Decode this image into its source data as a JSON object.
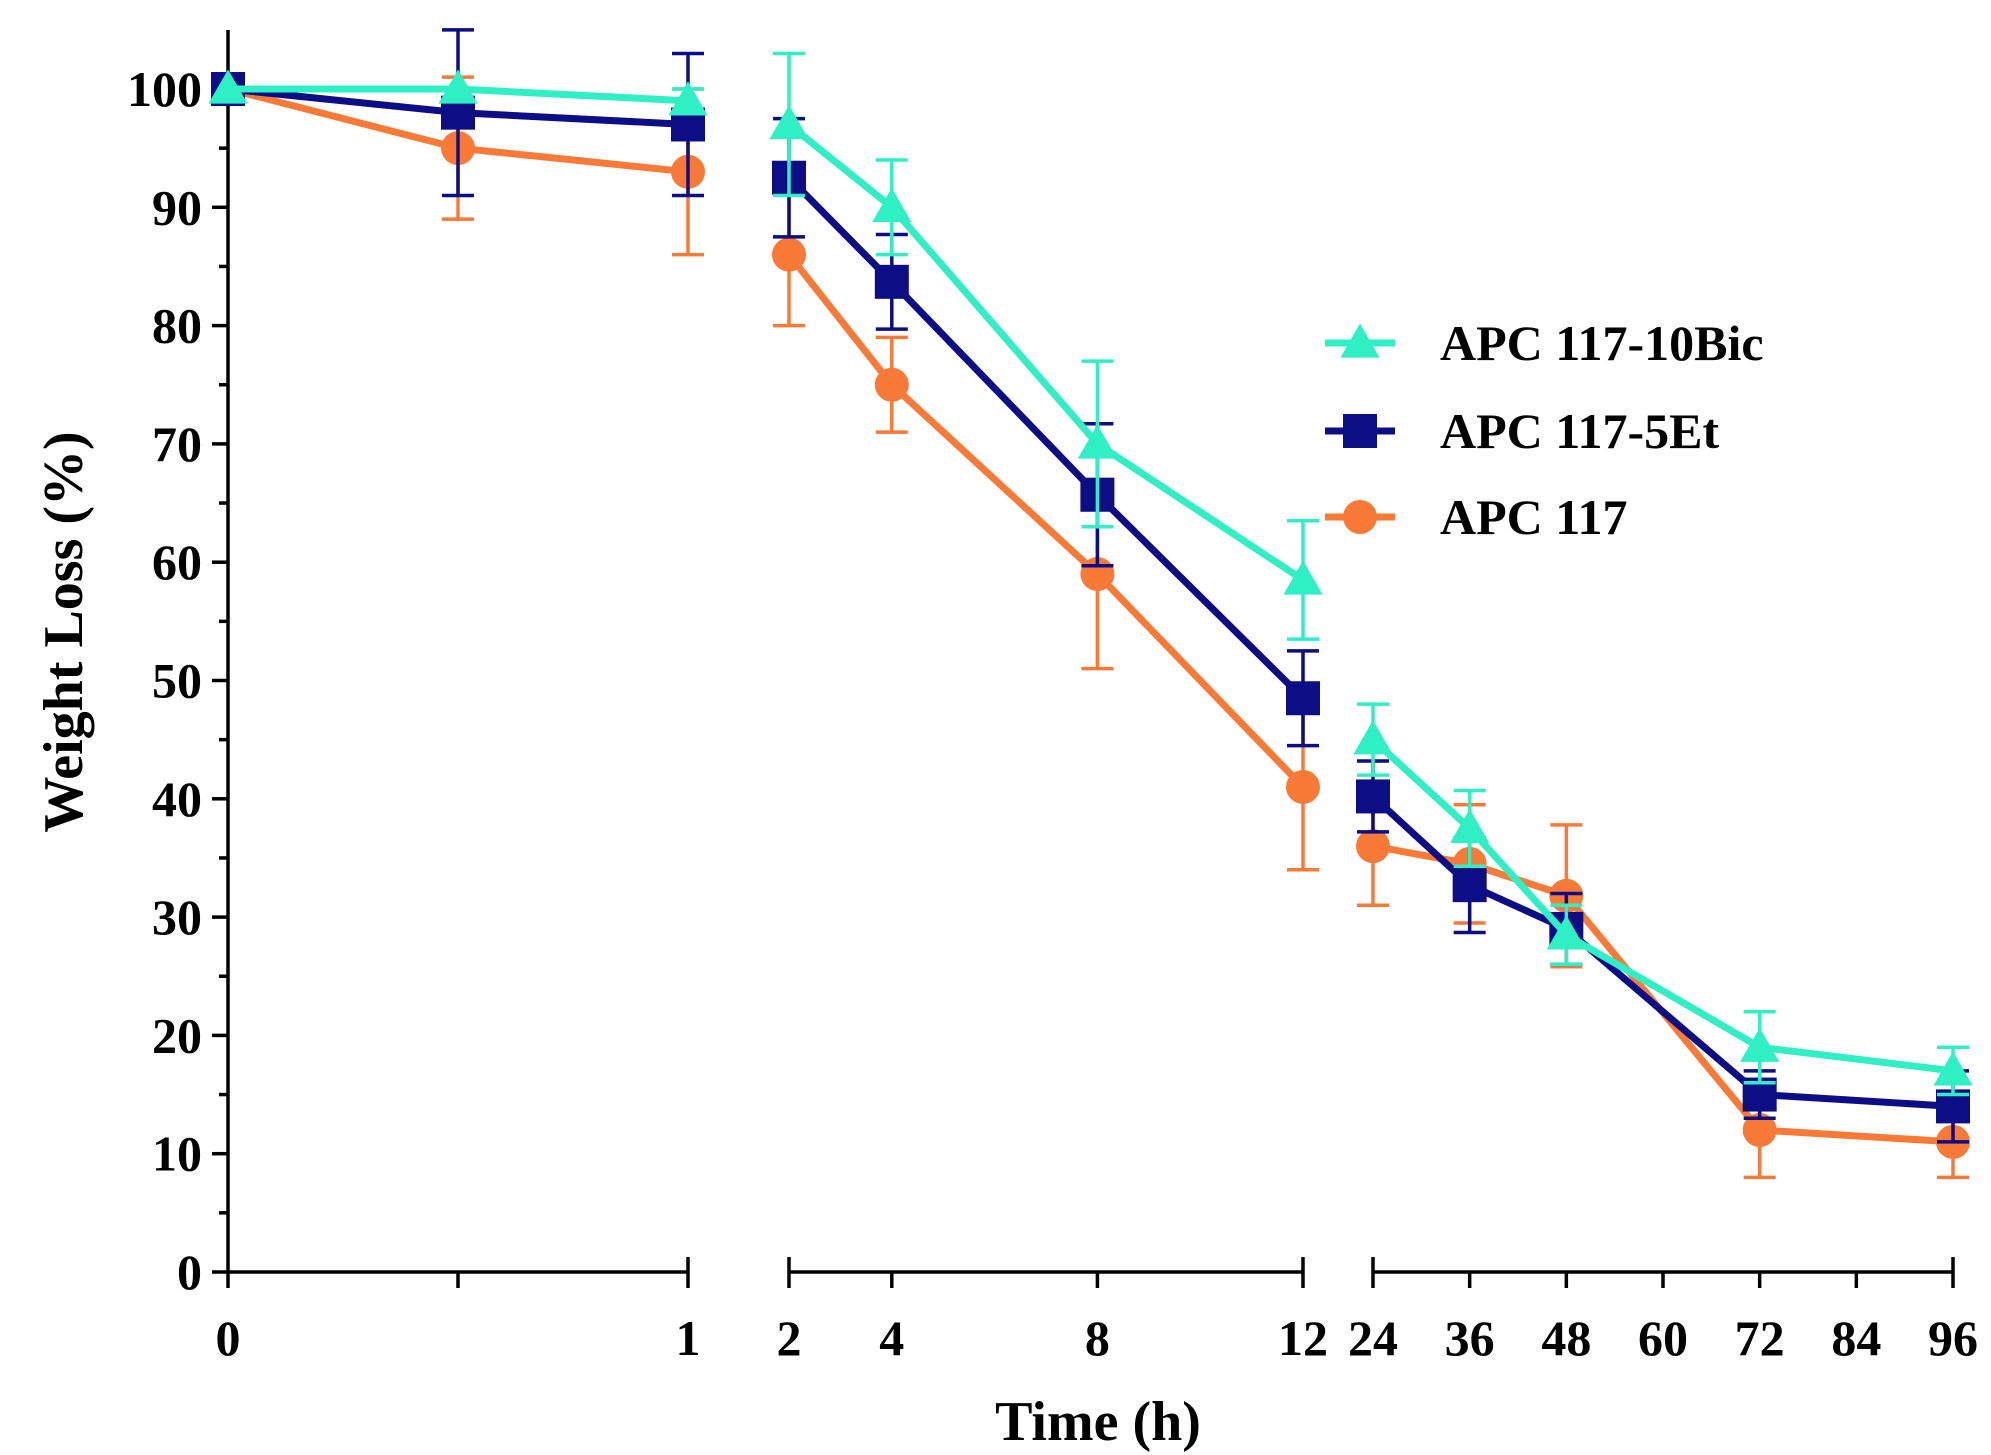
{
  "chart_data": {
    "type": "line",
    "title": "",
    "xlabel": "Time (h)",
    "ylabel": "Weight Loss (%)",
    "ylim": [
      0,
      104
    ],
    "yticks": [
      0,
      10,
      20,
      30,
      40,
      50,
      60,
      70,
      80,
      90,
      100
    ],
    "legend_position": "right",
    "x_segments": [
      {
        "range": [
          0,
          1
        ],
        "ticks": [
          0,
          0.5,
          1
        ],
        "tick_labels": [
          "0",
          "",
          "1"
        ]
      },
      {
        "range": [
          2,
          12
        ],
        "ticks": [
          2,
          4,
          8,
          12
        ],
        "tick_labels": [
          "2",
          "4",
          "8",
          "12"
        ]
      },
      {
        "range": [
          24,
          96
        ],
        "ticks": [
          24,
          36,
          48,
          60,
          72,
          84,
          96
        ],
        "tick_labels": [
          "24",
          "36",
          "48",
          "60",
          "72",
          "84",
          "96"
        ]
      }
    ],
    "series": [
      {
        "name": "APC 117-10Bic",
        "color": "#2ef0c4",
        "marker": "triangle",
        "x": [
          0,
          0.5,
          1,
          2,
          4,
          8,
          12,
          24,
          36,
          48,
          72,
          96
        ],
        "y": [
          100,
          100,
          99,
          97,
          90,
          70,
          58.5,
          45,
          37.5,
          28.5,
          19,
          17
        ],
        "err": [
          0,
          0,
          1,
          6,
          4,
          7,
          5,
          3,
          3.2,
          2.5,
          3,
          2
        ]
      },
      {
        "name": "APC 117-5Et",
        "color": "#0d0d85",
        "marker": "square",
        "x": [
          0,
          0.5,
          1,
          2,
          4,
          8,
          12,
          24,
          36,
          48,
          72,
          96
        ],
        "y": [
          100,
          98,
          97,
          92.5,
          83.7,
          65.7,
          48.5,
          40.2,
          32.7,
          29,
          15,
          14
        ],
        "err": [
          0,
          7,
          6,
          5,
          4,
          6,
          4,
          3,
          4,
          3,
          2,
          3
        ]
      },
      {
        "name": "APC 117",
        "color": "#f97a36",
        "marker": "circle",
        "x": [
          0,
          0.5,
          1,
          2,
          4,
          8,
          12,
          24,
          36,
          48,
          72,
          96
        ],
        "y": [
          100,
          95,
          93,
          86,
          75,
          59,
          41,
          36,
          34.5,
          31.8,
          12,
          11
        ],
        "err": [
          0,
          6,
          7,
          6,
          4,
          8,
          7,
          5,
          5,
          6,
          4,
          3
        ]
      }
    ]
  }
}
